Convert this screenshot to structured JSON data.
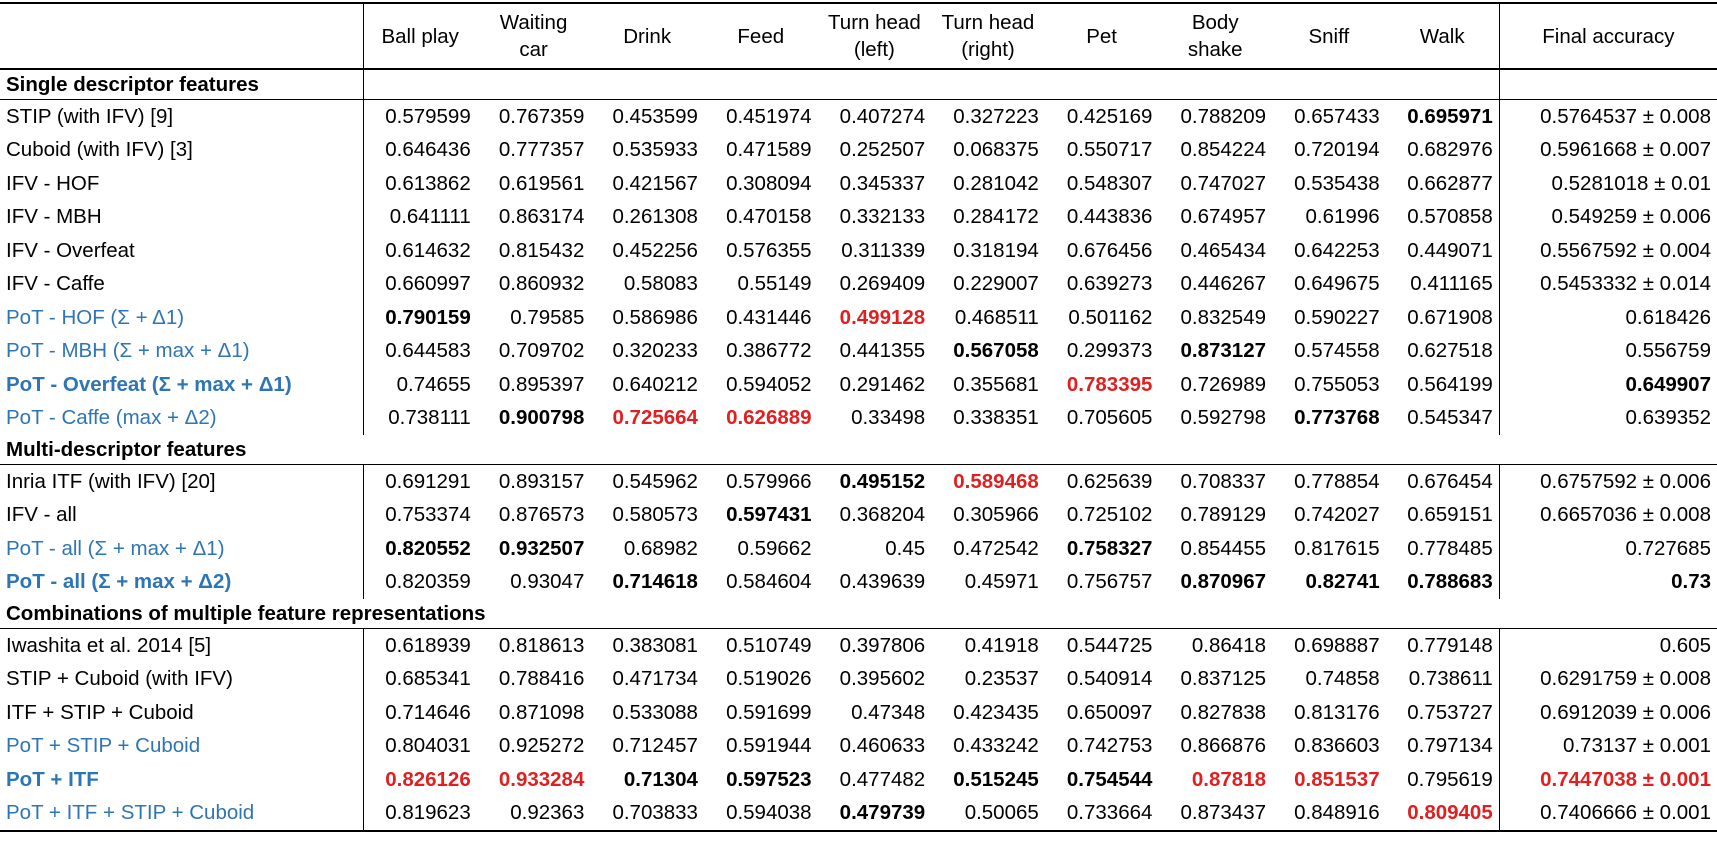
{
  "colors": {
    "proposed_label": "#2e75b6",
    "best_value": "#e02020",
    "text": "#000000"
  },
  "legend_note": "cell style: n=normal, b=bold, r=red bold",
  "header": {
    "label_col": "",
    "columns": [
      [
        "Ball play"
      ],
      [
        "Waiting",
        "car"
      ],
      [
        "Drink"
      ],
      [
        "Feed"
      ],
      [
        "Turn head",
        "(left)"
      ],
      [
        "Turn head",
        "(right)"
      ],
      [
        "Pet"
      ],
      [
        "Body",
        "shake"
      ],
      [
        "Sniff"
      ],
      [
        "Walk"
      ]
    ],
    "final": "Final accuracy"
  },
  "sections": [
    {
      "title": "Single descriptor features",
      "rows": [
        {
          "label": "STIP (with IFV) [9]",
          "lstyle": "n",
          "cells": [
            [
              "0.579599",
              "n"
            ],
            [
              "0.767359",
              "n"
            ],
            [
              "0.453599",
              "n"
            ],
            [
              "0.451974",
              "n"
            ],
            [
              "0.407274",
              "n"
            ],
            [
              "0.327223",
              "n"
            ],
            [
              "0.425169",
              "n"
            ],
            [
              "0.788209",
              "n"
            ],
            [
              "0.657433",
              "n"
            ],
            [
              "0.695971",
              "b"
            ]
          ],
          "final": [
            "0.5764537 ± 0.008",
            "n"
          ]
        },
        {
          "label": "Cuboid (with IFV) [3]",
          "lstyle": "n",
          "cells": [
            [
              "0.646436",
              "n"
            ],
            [
              "0.777357",
              "n"
            ],
            [
              "0.535933",
              "n"
            ],
            [
              "0.471589",
              "n"
            ],
            [
              "0.252507",
              "n"
            ],
            [
              "0.068375",
              "n"
            ],
            [
              "0.550717",
              "n"
            ],
            [
              "0.854224",
              "n"
            ],
            [
              "0.720194",
              "n"
            ],
            [
              "0.682976",
              "n"
            ]
          ],
          "final": [
            "0.5961668 ± 0.007",
            "n"
          ]
        },
        {
          "label": "IFV - HOF",
          "lstyle": "n",
          "cells": [
            [
              "0.613862",
              "n"
            ],
            [
              "0.619561",
              "n"
            ],
            [
              "0.421567",
              "n"
            ],
            [
              "0.308094",
              "n"
            ],
            [
              "0.345337",
              "n"
            ],
            [
              "0.281042",
              "n"
            ],
            [
              "0.548307",
              "n"
            ],
            [
              "0.747027",
              "n"
            ],
            [
              "0.535438",
              "n"
            ],
            [
              "0.662877",
              "n"
            ]
          ],
          "final": [
            "0.5281018 ± 0.01",
            "n"
          ]
        },
        {
          "label": "IFV - MBH",
          "lstyle": "n",
          "cells": [
            [
              "0.641111",
              "n"
            ],
            [
              "0.863174",
              "n"
            ],
            [
              "0.261308",
              "n"
            ],
            [
              "0.470158",
              "n"
            ],
            [
              "0.332133",
              "n"
            ],
            [
              "0.284172",
              "n"
            ],
            [
              "0.443836",
              "n"
            ],
            [
              "0.674957",
              "n"
            ],
            [
              "0.61996",
              "n"
            ],
            [
              "0.570858",
              "n"
            ]
          ],
          "final": [
            "0.549259 ± 0.006",
            "n"
          ]
        },
        {
          "label": "IFV - Overfeat",
          "lstyle": "n",
          "cells": [
            [
              "0.614632",
              "n"
            ],
            [
              "0.815432",
              "n"
            ],
            [
              "0.452256",
              "n"
            ],
            [
              "0.576355",
              "n"
            ],
            [
              "0.311339",
              "n"
            ],
            [
              "0.318194",
              "n"
            ],
            [
              "0.676456",
              "n"
            ],
            [
              "0.465434",
              "n"
            ],
            [
              "0.642253",
              "n"
            ],
            [
              "0.449071",
              "n"
            ]
          ],
          "final": [
            "0.5567592 ± 0.004",
            "n"
          ]
        },
        {
          "label": "IFV - Caffe",
          "lstyle": "n",
          "cells": [
            [
              "0.660997",
              "n"
            ],
            [
              "0.860932",
              "n"
            ],
            [
              "0.58083",
              "n"
            ],
            [
              "0.55149",
              "n"
            ],
            [
              "0.269409",
              "n"
            ],
            [
              "0.229007",
              "n"
            ],
            [
              "0.639273",
              "n"
            ],
            [
              "0.446267",
              "n"
            ],
            [
              "0.649675",
              "n"
            ],
            [
              "0.411165",
              "n"
            ]
          ],
          "final": [
            "0.5453332 ± 0.014",
            "n"
          ]
        },
        {
          "label": "PoT - HOF (Σ + Δ1)",
          "lstyle": "blue",
          "cells": [
            [
              "0.790159",
              "b"
            ],
            [
              "0.79585",
              "n"
            ],
            [
              "0.586986",
              "n"
            ],
            [
              "0.431446",
              "n"
            ],
            [
              "0.499128",
              "r"
            ],
            [
              "0.468511",
              "n"
            ],
            [
              "0.501162",
              "n"
            ],
            [
              "0.832549",
              "n"
            ],
            [
              "0.590227",
              "n"
            ],
            [
              "0.671908",
              "n"
            ]
          ],
          "final": [
            "0.618426",
            "n"
          ]
        },
        {
          "label": "PoT - MBH (Σ + max + Δ1)",
          "lstyle": "blue",
          "cells": [
            [
              "0.644583",
              "n"
            ],
            [
              "0.709702",
              "n"
            ],
            [
              "0.320233",
              "n"
            ],
            [
              "0.386772",
              "n"
            ],
            [
              "0.441355",
              "n"
            ],
            [
              "0.567058",
              "b"
            ],
            [
              "0.299373",
              "n"
            ],
            [
              "0.873127",
              "b"
            ],
            [
              "0.574558",
              "n"
            ],
            [
              "0.627518",
              "n"
            ]
          ],
          "final": [
            "0.556759",
            "n"
          ]
        },
        {
          "label": "PoT - Overfeat (Σ + max + Δ1)",
          "lstyle": "blue-bold",
          "cells": [
            [
              "0.74655",
              "n"
            ],
            [
              "0.895397",
              "n"
            ],
            [
              "0.640212",
              "n"
            ],
            [
              "0.594052",
              "n"
            ],
            [
              "0.291462",
              "n"
            ],
            [
              "0.355681",
              "n"
            ],
            [
              "0.783395",
              "r"
            ],
            [
              "0.726989",
              "n"
            ],
            [
              "0.755053",
              "n"
            ],
            [
              "0.564199",
              "n"
            ]
          ],
          "final": [
            "0.649907",
            "b"
          ]
        },
        {
          "label": "PoT - Caffe (max + Δ2)",
          "lstyle": "blue",
          "cells": [
            [
              "0.738111",
              "n"
            ],
            [
              "0.900798",
              "b"
            ],
            [
              "0.725664",
              "r"
            ],
            [
              "0.626889",
              "r"
            ],
            [
              "0.33498",
              "n"
            ],
            [
              "0.338351",
              "n"
            ],
            [
              "0.705605",
              "n"
            ],
            [
              "0.592798",
              "n"
            ],
            [
              "0.773768",
              "b"
            ],
            [
              "0.545347",
              "n"
            ]
          ],
          "final": [
            "0.639352",
            "n"
          ]
        }
      ]
    },
    {
      "title": "Multi-descriptor features",
      "rows": [
        {
          "label": "Inria ITF (with IFV) [20]",
          "lstyle": "n",
          "cells": [
            [
              "0.691291",
              "n"
            ],
            [
              "0.893157",
              "n"
            ],
            [
              "0.545962",
              "n"
            ],
            [
              "0.579966",
              "n"
            ],
            [
              "0.495152",
              "b"
            ],
            [
              "0.589468",
              "r"
            ],
            [
              "0.625639",
              "n"
            ],
            [
              "0.708337",
              "n"
            ],
            [
              "0.778854",
              "n"
            ],
            [
              "0.676454",
              "n"
            ]
          ],
          "final": [
            "0.6757592 ± 0.006",
            "n"
          ]
        },
        {
          "label": "IFV - all",
          "lstyle": "n",
          "cells": [
            [
              "0.753374",
              "n"
            ],
            [
              "0.876573",
              "n"
            ],
            [
              "0.580573",
              "n"
            ],
            [
              "0.597431",
              "b"
            ],
            [
              "0.368204",
              "n"
            ],
            [
              "0.305966",
              "n"
            ],
            [
              "0.725102",
              "n"
            ],
            [
              "0.789129",
              "n"
            ],
            [
              "0.742027",
              "n"
            ],
            [
              "0.659151",
              "n"
            ]
          ],
          "final": [
            "0.6657036 ± 0.008",
            "n"
          ]
        },
        {
          "label": "PoT - all (Σ + max + Δ1)",
          "lstyle": "blue",
          "cells": [
            [
              "0.820552",
              "b"
            ],
            [
              "0.932507",
              "b"
            ],
            [
              "0.68982",
              "n"
            ],
            [
              "0.59662",
              "n"
            ],
            [
              "0.45",
              "n"
            ],
            [
              "0.472542",
              "n"
            ],
            [
              "0.758327",
              "b"
            ],
            [
              "0.854455",
              "n"
            ],
            [
              "0.817615",
              "n"
            ],
            [
              "0.778485",
              "n"
            ]
          ],
          "final": [
            "0.727685",
            "n"
          ]
        },
        {
          "label": "PoT - all (Σ + max + Δ2)",
          "lstyle": "blue-bold",
          "cells": [
            [
              "0.820359",
              "n"
            ],
            [
              "0.93047",
              "n"
            ],
            [
              "0.714618",
              "b"
            ],
            [
              "0.584604",
              "n"
            ],
            [
              "0.439639",
              "n"
            ],
            [
              "0.45971",
              "n"
            ],
            [
              "0.756757",
              "n"
            ],
            [
              "0.870967",
              "b"
            ],
            [
              "0.82741",
              "b"
            ],
            [
              "0.788683",
              "b"
            ]
          ],
          "final": [
            "0.73",
            "b"
          ]
        }
      ]
    },
    {
      "title": "Combinations of multiple feature representations",
      "rows": [
        {
          "label": "Iwashita et al. 2014 [5]",
          "lstyle": "n",
          "cells": [
            [
              "0.618939",
              "n"
            ],
            [
              "0.818613",
              "n"
            ],
            [
              "0.383081",
              "n"
            ],
            [
              "0.510749",
              "n"
            ],
            [
              "0.397806",
              "n"
            ],
            [
              "0.41918",
              "n"
            ],
            [
              "0.544725",
              "n"
            ],
            [
              "0.86418",
              "n"
            ],
            [
              "0.698887",
              "n"
            ],
            [
              "0.779148",
              "n"
            ]
          ],
          "final": [
            "0.605",
            "n"
          ]
        },
        {
          "label": "STIP + Cuboid (with IFV)",
          "lstyle": "n",
          "cells": [
            [
              "0.685341",
              "n"
            ],
            [
              "0.788416",
              "n"
            ],
            [
              "0.471734",
              "n"
            ],
            [
              "0.519026",
              "n"
            ],
            [
              "0.395602",
              "n"
            ],
            [
              "0.23537",
              "n"
            ],
            [
              "0.540914",
              "n"
            ],
            [
              "0.837125",
              "n"
            ],
            [
              "0.74858",
              "n"
            ],
            [
              "0.738611",
              "n"
            ]
          ],
          "final": [
            "0.6291759 ± 0.008",
            "n"
          ]
        },
        {
          "label": "ITF + STIP + Cuboid",
          "lstyle": "n",
          "cells": [
            [
              "0.714646",
              "n"
            ],
            [
              "0.871098",
              "n"
            ],
            [
              "0.533088",
              "n"
            ],
            [
              "0.591699",
              "n"
            ],
            [
              "0.47348",
              "n"
            ],
            [
              "0.423435",
              "n"
            ],
            [
              "0.650097",
              "n"
            ],
            [
              "0.827838",
              "n"
            ],
            [
              "0.813176",
              "n"
            ],
            [
              "0.753727",
              "n"
            ]
          ],
          "final": [
            "0.6912039 ± 0.006",
            "n"
          ]
        },
        {
          "label": "PoT + STIP + Cuboid",
          "lstyle": "blue",
          "cells": [
            [
              "0.804031",
              "n"
            ],
            [
              "0.925272",
              "n"
            ],
            [
              "0.712457",
              "n"
            ],
            [
              "0.591944",
              "n"
            ],
            [
              "0.460633",
              "n"
            ],
            [
              "0.433242",
              "n"
            ],
            [
              "0.742753",
              "n"
            ],
            [
              "0.866876",
              "n"
            ],
            [
              "0.836603",
              "n"
            ],
            [
              "0.797134",
              "n"
            ]
          ],
          "final": [
            "0.73137 ± 0.001",
            "n"
          ]
        },
        {
          "label": "PoT + ITF",
          "lstyle": "blue-bold",
          "cells": [
            [
              "0.826126",
              "r"
            ],
            [
              "0.933284",
              "r"
            ],
            [
              "0.71304",
              "b"
            ],
            [
              "0.597523",
              "b"
            ],
            [
              "0.477482",
              "n"
            ],
            [
              "0.515245",
              "b"
            ],
            [
              "0.754544",
              "b"
            ],
            [
              "0.87818",
              "r"
            ],
            [
              "0.851537",
              "r"
            ],
            [
              "0.795619",
              "n"
            ]
          ],
          "final": [
            "0.7447038 ± 0.001",
            "r"
          ]
        },
        {
          "label": "PoT + ITF + STIP + Cuboid",
          "lstyle": "blue",
          "cells": [
            [
              "0.819623",
              "n"
            ],
            [
              "0.92363",
              "n"
            ],
            [
              "0.703833",
              "n"
            ],
            [
              "0.594038",
              "n"
            ],
            [
              "0.479739",
              "b"
            ],
            [
              "0.50065",
              "n"
            ],
            [
              "0.733664",
              "n"
            ],
            [
              "0.873437",
              "n"
            ],
            [
              "0.848916",
              "n"
            ],
            [
              "0.809405",
              "r"
            ]
          ],
          "final": [
            "0.7406666 ± 0.001",
            "n"
          ]
        }
      ]
    }
  ]
}
